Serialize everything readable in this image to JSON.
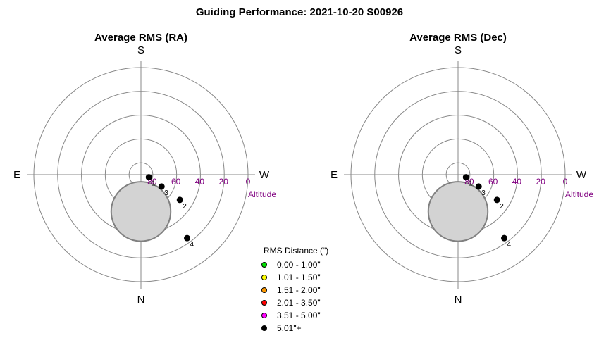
{
  "title": "Guiding Performance: 2021-10-20 S00926",
  "compass": {
    "north": "N",
    "south": "S",
    "east": "E",
    "west": "W"
  },
  "altitude_label": "Altitude",
  "altitude_ticks": [
    "80",
    "60",
    "40",
    "20",
    "0"
  ],
  "legend": {
    "title": "RMS Distance (\")",
    "items": [
      {
        "label": "0.00 - 1.00\"",
        "color": "#00dd00"
      },
      {
        "label": "1.01 - 1.50\"",
        "color": "#ffff00"
      },
      {
        "label": "1.51 - 2.00\"",
        "color": "#ff9900"
      },
      {
        "label": "2.01 - 3.50\"",
        "color": "#ff0000"
      },
      {
        "label": "3.51 - 5.00\"",
        "color": "#ff00ff"
      },
      {
        "label": "5.01\"+",
        "color": "#000000"
      }
    ]
  },
  "chart_data": [
    {
      "type": "scatter",
      "projection": "polar-altaz",
      "title": "Average RMS (RA)",
      "r_axis": "altitude",
      "r_range": [
        90,
        0
      ],
      "rings": [
        80,
        60,
        40,
        20,
        0
      ],
      "exclusion_zone": {
        "azimuth": 0,
        "altitude": 59,
        "radius_deg": 25
      },
      "points": [
        {
          "label": "1",
          "azimuth": 288,
          "altitude": 83,
          "rms_bin": "5.01\"+"
        },
        {
          "label": "3",
          "azimuth": 300,
          "altitude": 70,
          "rms_bin": "5.01\"+"
        },
        {
          "label": "2",
          "azimuth": 303,
          "altitude": 51,
          "rms_bin": "5.01\"+"
        },
        {
          "label": "4",
          "azimuth": 324,
          "altitude": 24,
          "rms_bin": "5.01\"+"
        }
      ]
    },
    {
      "type": "scatter",
      "projection": "polar-altaz",
      "title": "Average RMS (Dec)",
      "r_axis": "altitude",
      "r_range": [
        90,
        0
      ],
      "rings": [
        80,
        60,
        40,
        20,
        0
      ],
      "exclusion_zone": {
        "azimuth": 0,
        "altitude": 59,
        "radius_deg": 25
      },
      "points": [
        {
          "label": "1",
          "azimuth": 288,
          "altitude": 83,
          "rms_bin": "5.01\"+"
        },
        {
          "label": "3",
          "azimuth": 300,
          "altitude": 70,
          "rms_bin": "5.01\"+"
        },
        {
          "label": "2",
          "azimuth": 303,
          "altitude": 51,
          "rms_bin": "5.01\"+"
        },
        {
          "label": "4",
          "azimuth": 324,
          "altitude": 24,
          "rms_bin": "5.01\"+"
        }
      ]
    }
  ]
}
